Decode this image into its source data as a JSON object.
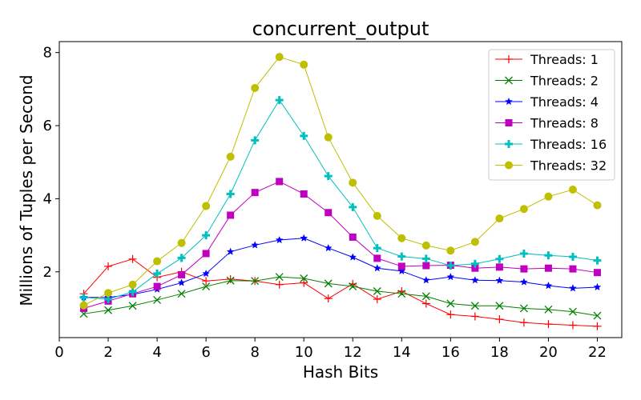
{
  "chart_data": {
    "type": "line",
    "title": "concurrent_output",
    "xlabel": "Hash Bits",
    "ylabel": "Millions of Tuples per Second",
    "xlim": [
      0,
      23
    ],
    "ylim": [
      0.2,
      8.3
    ],
    "xticks": [
      0,
      2,
      4,
      6,
      8,
      10,
      12,
      14,
      16,
      18,
      20,
      22
    ],
    "yticks": [
      2,
      4,
      6,
      8
    ],
    "grid": false,
    "legend_position": "top-right",
    "x": [
      1,
      2,
      3,
      4,
      5,
      6,
      7,
      8,
      9,
      10,
      11,
      12,
      13,
      14,
      15,
      16,
      17,
      18,
      19,
      20,
      21,
      22
    ],
    "series": [
      {
        "name": "Threads: 1",
        "color": "#ff0000",
        "marker": "plus-thin",
        "values": [
          1.4,
          2.15,
          2.35,
          1.85,
          2.0,
          1.75,
          1.8,
          1.75,
          1.65,
          1.7,
          1.27,
          1.67,
          1.25,
          1.47,
          1.13,
          0.83,
          0.78,
          0.7,
          0.61,
          0.57,
          0.54,
          0.51
        ]
      },
      {
        "name": "Threads: 2",
        "color": "#008000",
        "marker": "x",
        "values": [
          0.85,
          0.95,
          1.07,
          1.23,
          1.4,
          1.6,
          1.76,
          1.75,
          1.86,
          1.82,
          1.68,
          1.6,
          1.47,
          1.4,
          1.33,
          1.13,
          1.07,
          1.07,
          1.0,
          0.97,
          0.91,
          0.8
        ]
      },
      {
        "name": "Threads: 4",
        "color": "#0000ff",
        "marker": "star",
        "values": [
          1.3,
          1.3,
          1.38,
          1.52,
          1.7,
          1.95,
          2.55,
          2.73,
          2.87,
          2.92,
          2.65,
          2.4,
          2.1,
          2.02,
          1.77,
          1.86,
          1.77,
          1.76,
          1.72,
          1.62,
          1.55,
          1.58
        ]
      },
      {
        "name": "Threads: 8",
        "color": "#bf00bf",
        "marker": "square",
        "values": [
          1.0,
          1.2,
          1.4,
          1.6,
          1.92,
          2.5,
          3.55,
          4.17,
          4.47,
          4.13,
          3.62,
          2.95,
          2.37,
          2.15,
          2.17,
          2.18,
          2.1,
          2.13,
          2.08,
          2.1,
          2.08,
          1.98
        ]
      },
      {
        "name": "Threads: 16",
        "color": "#00bfbf",
        "marker": "plus-bold",
        "values": [
          1.3,
          1.25,
          1.45,
          1.95,
          2.38,
          3.0,
          4.13,
          5.6,
          6.7,
          5.72,
          4.62,
          3.77,
          2.65,
          2.42,
          2.36,
          2.17,
          2.22,
          2.35,
          2.5,
          2.45,
          2.41,
          2.31
        ]
      },
      {
        "name": "Threads: 32",
        "color": "#bfbf00",
        "marker": "circle",
        "values": [
          1.08,
          1.42,
          1.65,
          2.29,
          2.79,
          3.8,
          5.15,
          7.03,
          7.88,
          7.67,
          5.68,
          4.44,
          3.53,
          2.92,
          2.72,
          2.58,
          2.82,
          3.46,
          3.72,
          4.06,
          4.25,
          3.82
        ]
      }
    ]
  }
}
